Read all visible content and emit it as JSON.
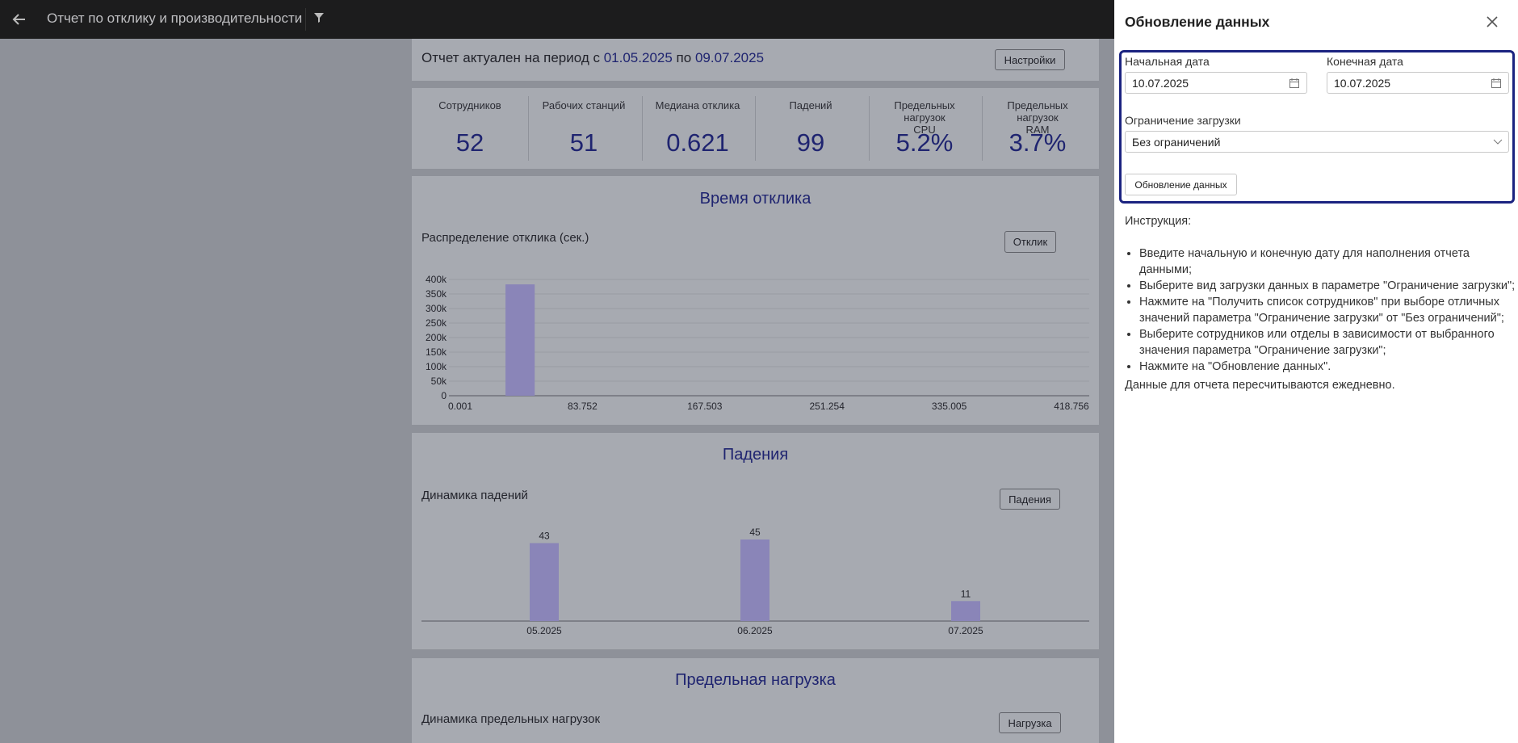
{
  "header": {
    "title": "Отчет по отклику и производительности"
  },
  "period": {
    "prefix": "Отчет актуален на период с",
    "start": "01.05.2025",
    "middle": "по",
    "end": "09.07.2025",
    "button": "Настройки"
  },
  "kpis": [
    {
      "label": "Сотрудников",
      "value": "52"
    },
    {
      "label": "Рабочих станций",
      "value": "51"
    },
    {
      "label": "Медиана отклика",
      "value": "0.621"
    },
    {
      "label": "Падений",
      "value": "99"
    },
    {
      "label": "Предельных нагрузок CPU",
      "value": "5.2%"
    },
    {
      "label": "Предельных нагрузок RAM",
      "value": "3.7%"
    }
  ],
  "response_chart": {
    "type": "histogram",
    "title": "Время отклика",
    "subtitle": "Распределение отклика (сек.)",
    "button": "Отклик",
    "bins": [
      31,
      51
    ],
    "counts": [
      383000
    ],
    "color": "#8a85b8",
    "xlim": [
      0.001,
      418.756
    ],
    "xticks": [
      0.001,
      83.752,
      167.503,
      251.254,
      335.005,
      418.756
    ],
    "ylim": [
      0,
      400000
    ],
    "yticks": [
      0,
      {
        "value": 50000,
        "label": "50k"
      },
      {
        "value": 100000,
        "label": "100k"
      },
      {
        "value": 150000,
        "label": "150k"
      },
      {
        "value": 200000,
        "label": "200k"
      },
      {
        "value": 250000,
        "label": "250k"
      },
      {
        "value": 300000,
        "label": "300k"
      },
      {
        "value": 350000,
        "label": "350k"
      },
      {
        "value": 400000,
        "label": "400k"
      }
    ],
    "grid": true
  },
  "falls_chart": {
    "type": "bar",
    "title": "Падения",
    "subtitle": "Динамика падений",
    "button": "Падения",
    "categories": [
      "05.2025",
      "06.2025",
      "07.2025"
    ],
    "values": [
      43,
      45,
      11
    ],
    "color": "#8a85b8"
  },
  "load_chart": {
    "title": "Предельная нагрузка",
    "subtitle": "Динамика предельных нагрузок",
    "button": "Нагрузка"
  },
  "panel": {
    "title": "Обновление данных",
    "start_label": "Начальная дата",
    "start_value": "10.07.2025",
    "end_label": "Конечная дата",
    "end_value": "10.07.2025",
    "limit_label": "Ограничение загрузки",
    "limit_value": "Без ограничений",
    "button": "Обновление данных",
    "instruction_title": "Инструкция:",
    "instructions": [
      "Введите начальную и конечную дату для наполнения отчета данными;",
      "Выберите вид загрузки данных в параметре \"Ограничение загрузки\";",
      "Нажмите на \"Получить список сотрудников\" при выборе отличных значений параметра \"Ограничение загрузки\" от \"Без ограничений\";",
      "Выберите сотрудников или отделы в зависимости от выбранного значения параметра \"Ограничение загрузки\";",
      "Нажмите на \"Обновление данных\"."
    ],
    "footer": "Данные для отчета пересчитываются ежедневно."
  }
}
